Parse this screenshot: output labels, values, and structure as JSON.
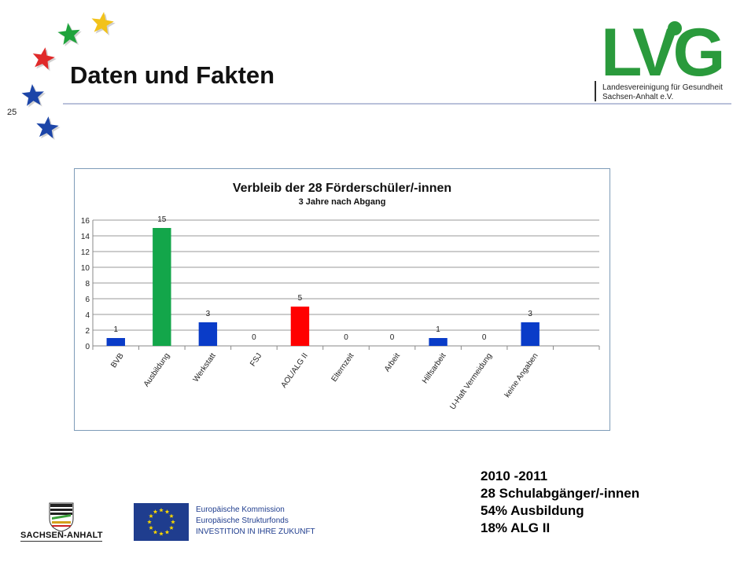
{
  "page_number": "25",
  "slide_title": "Daten und Fakten",
  "logo": {
    "letters": "LVG",
    "line1": "Landesvereinigung für Gesundheit",
    "line2": "Sachsen-Anhalt e.V.",
    "brand_color": "#2a9a3c"
  },
  "stars": [
    {
      "name": "yellow-star-icon",
      "color": "#f2c21a"
    },
    {
      "name": "green-star-icon",
      "color": "#1fa33c"
    },
    {
      "name": "red-star-icon",
      "color": "#e02a2a"
    },
    {
      "name": "blue-star-icon",
      "color": "#1c45a8"
    },
    {
      "name": "blue-star-icon",
      "color": "#1c45a8"
    }
  ],
  "chart_data": {
    "type": "bar",
    "title": "Verbleib der 28 Förderschüler/-innen",
    "subtitle": "3 Jahre nach Abgang",
    "categories": [
      "BVB",
      "Ausbildung",
      "Werkstatt",
      "FSJ",
      "AOL/ALG II",
      "Elternzeit",
      "Arbeit",
      "Hilfsarbeit",
      "U-Haft Vermeidung",
      "keine Angaben"
    ],
    "values": [
      1,
      15,
      3,
      0,
      5,
      0,
      0,
      1,
      0,
      3
    ],
    "colors": [
      "#0a3cc8",
      "#13a64a",
      "#0a3cc8",
      "#0a3cc8",
      "#ff0000",
      "#0a3cc8",
      "#0a3cc8",
      "#0a3cc8",
      "#0a3cc8",
      "#0a3cc8"
    ],
    "yticks": [
      0,
      2,
      4,
      6,
      8,
      10,
      12,
      14,
      16
    ],
    "ylim": [
      0,
      16
    ],
    "grid": true,
    "legend": "none",
    "xlabel": "",
    "ylabel": ""
  },
  "stats": {
    "line1": "2010 -2011",
    "line2": "28 Schulabgänger/-innen",
    "line3": "54% Ausbildung",
    "line4": "18% ALG II"
  },
  "footer": {
    "sachsen_anhalt": "SACHSEN-ANHALT",
    "eu_line1": "Europäische Kommission",
    "eu_line2": "Europäische Strukturfonds",
    "eu_line3": "INVESTITION IN IHRE ZUKUNFT",
    "eu_blue": "#1f3d8e",
    "eu_yellow": "#f5d400"
  }
}
